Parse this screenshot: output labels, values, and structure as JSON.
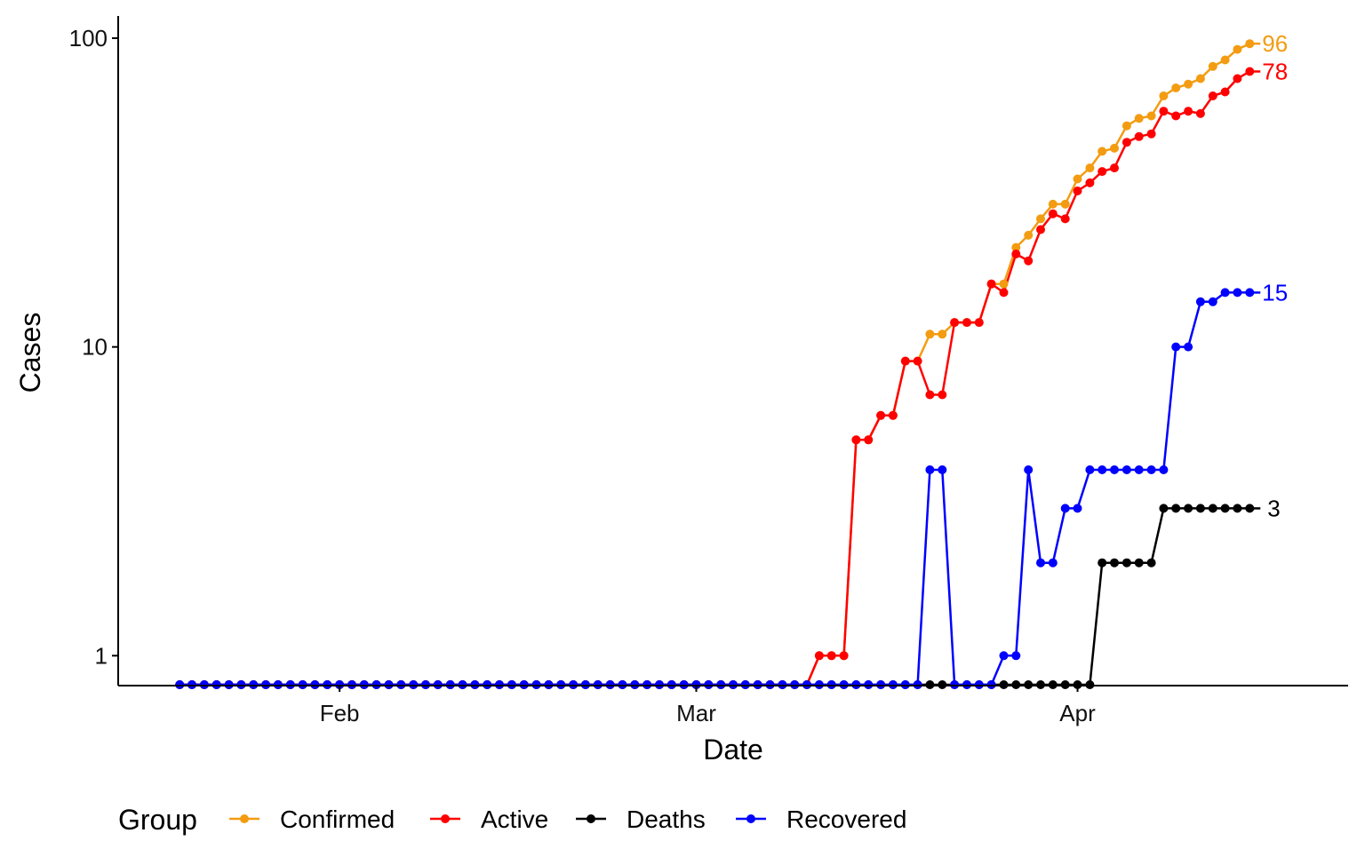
{
  "chart_data": {
    "type": "line",
    "title": "",
    "xlabel": "Date",
    "ylabel": "Cases",
    "y_scale": "log10",
    "ylim": [
      0.8,
      118
    ],
    "xlim": [
      "2020-01-14",
      "2020-04-23"
    ],
    "x_ticks": [
      {
        "date": "2020-02-01",
        "label": "Feb"
      },
      {
        "date": "2020-03-01",
        "label": "Mar"
      },
      {
        "date": "2020-04-01",
        "label": "Apr"
      }
    ],
    "y_ticks": [
      {
        "value": 1,
        "label": "1"
      },
      {
        "value": 10,
        "label": "10"
      },
      {
        "value": 100,
        "label": "100"
      }
    ],
    "grid": false,
    "legend": {
      "title": "Group",
      "position": "bottom"
    },
    "x_start": "2020-01-19",
    "series": [
      {
        "name": "Confirmed",
        "color": "#f39c12",
        "end_label": "96",
        "values": [
          0,
          0,
          0,
          0,
          0,
          0,
          0,
          0,
          0,
          0,
          0,
          0,
          0,
          0,
          0,
          0,
          0,
          0,
          0,
          0,
          0,
          0,
          0,
          0,
          0,
          0,
          0,
          0,
          0,
          0,
          0,
          0,
          0,
          0,
          0,
          0,
          0,
          0,
          0,
          0,
          0,
          0,
          0,
          0,
          0,
          0,
          0,
          0,
          0,
          0,
          0,
          0,
          1,
          1,
          1,
          5,
          5,
          6,
          6,
          9,
          9,
          11,
          11,
          12,
          12,
          12,
          16,
          16,
          21,
          23,
          26,
          29,
          29,
          35,
          38,
          43,
          44,
          52,
          55,
          56,
          65,
          69,
          71,
          74,
          81,
          85,
          92,
          96
        ]
      },
      {
        "name": "Active",
        "color": "#ff0000",
        "end_label": "78",
        "values": [
          0,
          0,
          0,
          0,
          0,
          0,
          0,
          0,
          0,
          0,
          0,
          0,
          0,
          0,
          0,
          0,
          0,
          0,
          0,
          0,
          0,
          0,
          0,
          0,
          0,
          0,
          0,
          0,
          0,
          0,
          0,
          0,
          0,
          0,
          0,
          0,
          0,
          0,
          0,
          0,
          0,
          0,
          0,
          0,
          0,
          0,
          0,
          0,
          0,
          0,
          0,
          0,
          1,
          1,
          1,
          5,
          5,
          6,
          6,
          9,
          9,
          7,
          7,
          12,
          12,
          12,
          16,
          15,
          20,
          19,
          24,
          27,
          26,
          32,
          34,
          37,
          38,
          46,
          48,
          49,
          58,
          56,
          58,
          57,
          65,
          67,
          74,
          78
        ]
      },
      {
        "name": "Deaths",
        "color": "#000000",
        "end_label": "3",
        "values": [
          0,
          0,
          0,
          0,
          0,
          0,
          0,
          0,
          0,
          0,
          0,
          0,
          0,
          0,
          0,
          0,
          0,
          0,
          0,
          0,
          0,
          0,
          0,
          0,
          0,
          0,
          0,
          0,
          0,
          0,
          0,
          0,
          0,
          0,
          0,
          0,
          0,
          0,
          0,
          0,
          0,
          0,
          0,
          0,
          0,
          0,
          0,
          0,
          0,
          0,
          0,
          0,
          0,
          0,
          0,
          0,
          0,
          0,
          0,
          0,
          0,
          0,
          0,
          0,
          0,
          0,
          0,
          0,
          0,
          0,
          0,
          0,
          0,
          0,
          0,
          2,
          2,
          2,
          2,
          2,
          3,
          3,
          3,
          3,
          3,
          3,
          3,
          3
        ]
      },
      {
        "name": "Recovered",
        "color": "#0000ff",
        "end_label": "15",
        "values": [
          0,
          0,
          0,
          0,
          0,
          0,
          0,
          0,
          0,
          0,
          0,
          0,
          0,
          0,
          0,
          0,
          0,
          0,
          0,
          0,
          0,
          0,
          0,
          0,
          0,
          0,
          0,
          0,
          0,
          0,
          0,
          0,
          0,
          0,
          0,
          0,
          0,
          0,
          0,
          0,
          0,
          0,
          0,
          0,
          0,
          0,
          0,
          0,
          0,
          0,
          0,
          0,
          0,
          0,
          0,
          0,
          0,
          0,
          0,
          0,
          0,
          4,
          4,
          0,
          0,
          0,
          0,
          1,
          1,
          4,
          2,
          2,
          3,
          3,
          4,
          4,
          4,
          4,
          4,
          4,
          4,
          10,
          10,
          14,
          14,
          15,
          15,
          15
        ]
      }
    ]
  }
}
